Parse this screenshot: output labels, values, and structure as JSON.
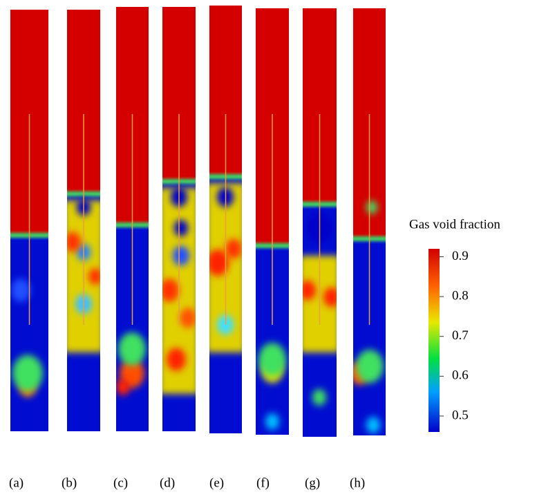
{
  "panels": {
    "labels": [
      "(a)",
      "(b)",
      "(c)",
      "(d)",
      "(e)",
      "(f)",
      "(g)",
      "(h)"
    ]
  },
  "colorbar": {
    "title": "Gas void fraction",
    "range": [
      0.46,
      0.92
    ],
    "ticks": [
      0.9,
      0.8,
      0.7,
      0.6,
      0.5
    ]
  }
}
